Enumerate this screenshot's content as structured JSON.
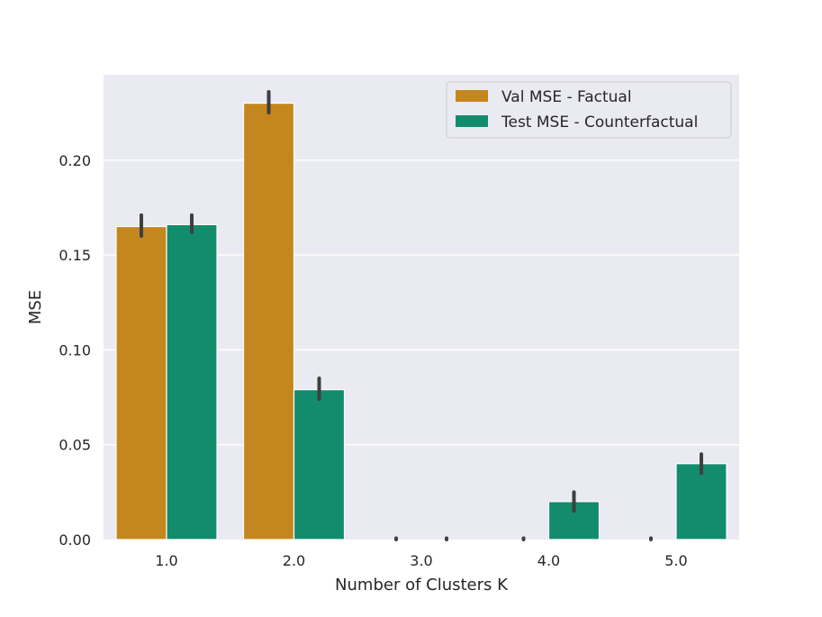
{
  "chart_data": {
    "type": "bar",
    "title": "",
    "xlabel": "Number of Clusters K",
    "ylabel": "MSE",
    "categories": [
      "1.0",
      "2.0",
      "3.0",
      "4.0",
      "5.0"
    ],
    "ylim": [
      0,
      0.245
    ],
    "yticks": [
      0.0,
      0.05,
      0.1,
      0.15,
      0.2
    ],
    "ytick_labels": [
      "0.00",
      "0.05",
      "0.10",
      "0.15",
      "0.20"
    ],
    "grid": true,
    "legend_position": "top-right",
    "series": [
      {
        "name": "Val MSE - Factual",
        "color": "#c4871e",
        "values": [
          0.165,
          0.23,
          0.0,
          0.0,
          0.0
        ],
        "error": [
          [
            0.16,
            0.171
          ],
          [
            0.225,
            0.236
          ],
          [
            0.0,
            0.0003
          ],
          [
            0.0,
            0.0003
          ],
          [
            0.0,
            0.0005
          ]
        ]
      },
      {
        "name": "Test MSE - Counterfactual",
        "color": "#138b6d",
        "values": [
          0.166,
          0.079,
          0.0,
          0.02,
          0.04
        ],
        "error": [
          [
            0.162,
            0.171
          ],
          [
            0.074,
            0.085
          ],
          [
            0.0,
            0.0003
          ],
          [
            0.015,
            0.025
          ],
          [
            0.035,
            0.045
          ]
        ]
      }
    ]
  }
}
